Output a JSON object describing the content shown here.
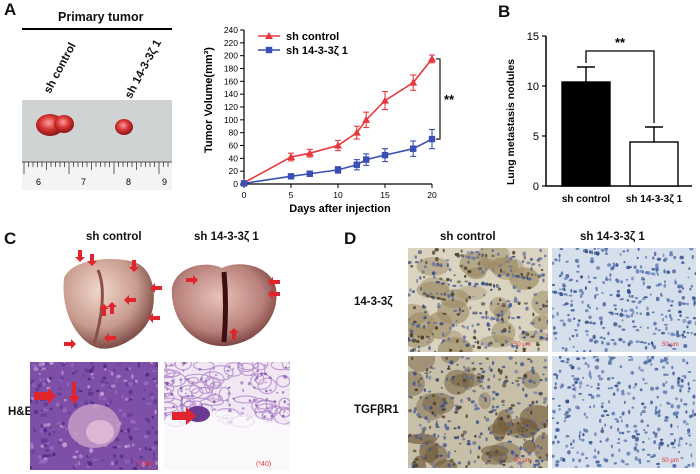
{
  "panels": {
    "a": {
      "letter": "A",
      "photo_title": "Primary tumor",
      "group_labels": [
        "sh control",
        "sh 14-3-3ζ 1"
      ],
      "ruler_numbers": [
        "6",
        "7",
        "8",
        "9"
      ]
    },
    "b": {
      "letter": "B",
      "significance": "**"
    },
    "c": {
      "letter": "C",
      "columns": [
        "sh control",
        "sh 14-3-3ζ 1"
      ],
      "row_label": "H&E",
      "magnification": "(*40)"
    },
    "d": {
      "letter": "D",
      "columns": [
        "sh control",
        "sh 14-3-3ζ 1"
      ],
      "rows": [
        "14-3-3ζ",
        "TGFβR1"
      ],
      "scale_text": "50 μm"
    }
  },
  "chart_data": [
    {
      "type": "line",
      "xlabel": "Days after injection",
      "ylabel": "Tumor Volume(mm³)",
      "xlim": [
        0,
        20
      ],
      "ylim": [
        0,
        240
      ],
      "xticks": [
        0,
        5,
        10,
        15,
        20
      ],
      "yticks": [
        0,
        20,
        40,
        60,
        80,
        100,
        120,
        140,
        160,
        180,
        200,
        220,
        240
      ],
      "legend": "top-left",
      "significance": "**",
      "series": [
        {
          "name": "sh control",
          "color": "#e8383d",
          "marker": "triangle",
          "x": [
            0,
            5,
            7,
            10,
            12,
            13,
            15,
            18,
            20
          ],
          "y": [
            2,
            42,
            48,
            60,
            80,
            100,
            130,
            158,
            195
          ],
          "err": [
            2,
            6,
            6,
            8,
            10,
            12,
            14,
            12,
            6
          ]
        },
        {
          "name": "sh 14-3-3ζ 1",
          "color": "#3a4fb5",
          "marker": "square",
          "x": [
            0,
            5,
            7,
            10,
            12,
            13,
            15,
            18,
            20
          ],
          "y": [
            1,
            12,
            16,
            22,
            30,
            38,
            45,
            55,
            70
          ],
          "err": [
            1,
            3,
            4,
            5,
            8,
            9,
            10,
            12,
            15
          ]
        }
      ]
    },
    {
      "type": "bar",
      "ylabel": "Lung metastasis nodules",
      "ylim": [
        0,
        15
      ],
      "yticks": [
        0,
        5,
        10,
        15
      ],
      "categories": [
        "sh control",
        "sh 14-3-3ζ 1"
      ],
      "values": [
        10.4,
        4.4
      ],
      "err": [
        1.5,
        1.5
      ],
      "colors": [
        "#000000",
        "#ffffff"
      ]
    }
  ]
}
